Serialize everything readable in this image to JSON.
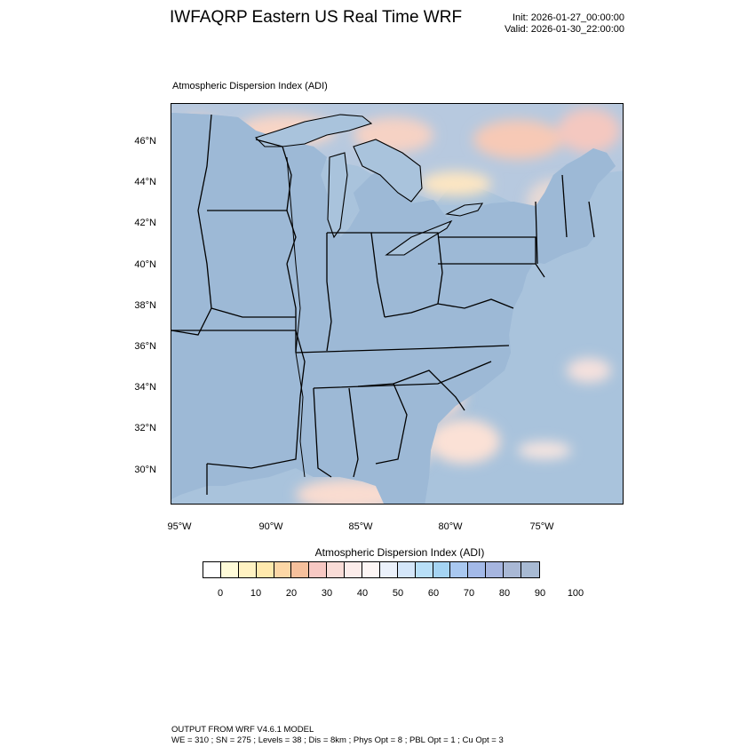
{
  "header": {
    "title": "IWFAQRP Eastern US Real Time WRF",
    "init": "Init: 2026-01-27_00:00:00",
    "valid": "Valid: 2026-01-30_22:00:00"
  },
  "map": {
    "subtitle": "Atmospheric Dispersion Index   (ADI)",
    "lat_labels": [
      "46°N",
      "44°N",
      "42°N",
      "40°N",
      "38°N",
      "36°N",
      "34°N",
      "32°N",
      "30°N"
    ],
    "lon_labels": [
      "95°W",
      "90°W",
      "85°W",
      "80°W",
      "75°W"
    ],
    "colors": {
      "ocean": "#a9c3dc",
      "land_high": "#9db9d6",
      "land_low": "#fbd8c8",
      "land_mid": "#f5c59f",
      "state_lines": "#000000",
      "county_lines": "#303030"
    }
  },
  "colorbar": {
    "title": "Atmospheric Dispersion Index  (ADI)",
    "labels": [
      "0",
      "10",
      "20",
      "30",
      "40",
      "50",
      "60",
      "70",
      "80",
      "90",
      "100"
    ],
    "colors": [
      "#ffffff",
      "#fffbd8",
      "#fff2c2",
      "#ffe9ad",
      "#fdd7a6",
      "#f6c09c",
      "#f7c8c3",
      "#f9dcd7",
      "#fcecea",
      "#fdf6f5",
      "#ebf1fb",
      "#d4e6f9",
      "#b8dff8",
      "#a5d4f3",
      "#a9c8f0",
      "#a3b9e8",
      "#a6b5df",
      "#a9b8d5",
      "#a8bad3"
    ]
  },
  "footer": {
    "line1": "OUTPUT FROM WRF V4.6.1 MODEL",
    "line2": "WE = 310 ; SN = 275 ; Levels = 38 ; Dis = 8km ; Phys Opt = 8 ; PBL Opt = 1 ; Cu Opt = 3"
  }
}
